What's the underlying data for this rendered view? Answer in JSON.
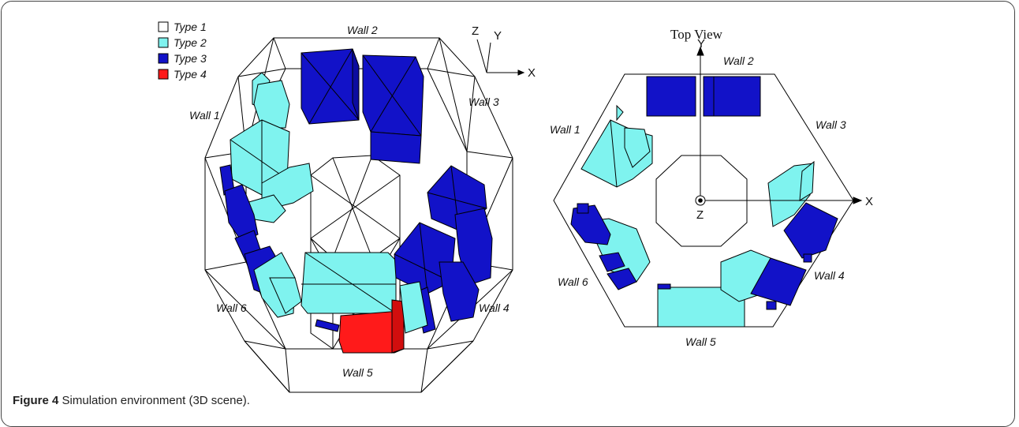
{
  "legend": [
    {
      "label": "Type 1",
      "color": "#ffffff"
    },
    {
      "label": "Type 2",
      "color": "#7ff3ef"
    },
    {
      "label": "Type 3",
      "color": "#1212c8"
    },
    {
      "label": "Type 4",
      "color": "#ff1a1a"
    }
  ],
  "view3d": {
    "walls": [
      "Wall 1",
      "Wall 2",
      "Wall 3",
      "Wall 4",
      "Wall 5",
      "Wall 6"
    ],
    "axes": {
      "z": "Z",
      "y": "Y",
      "x": "X"
    }
  },
  "top_view": {
    "title": "Top View",
    "walls": [
      "Wall 1",
      "Wall 2",
      "Wall 3",
      "Wall 4",
      "Wall 5",
      "Wall 6"
    ],
    "axes": {
      "y": "Y",
      "x": "X",
      "z": "Z"
    }
  },
  "caption": {
    "label": "Figure 4",
    "text": "Simulation environment (3D scene)."
  },
  "colors": {
    "cyan": "#7ff3ef",
    "blue": "#1212c8",
    "red": "#ff1a1a",
    "edge": "#000000"
  }
}
